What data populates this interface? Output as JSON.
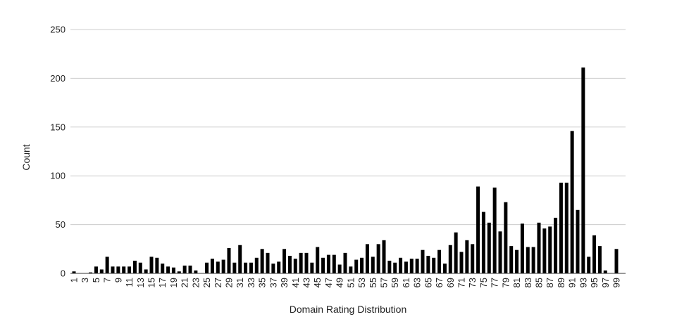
{
  "colors": {
    "bar": "#000000",
    "grid": "#cccccc",
    "axis": "#333333",
    "text": "#222222"
  },
  "chart_data": {
    "type": "bar",
    "title": "",
    "xlabel": "Domain Rating Distribution",
    "ylabel": "Count",
    "ylim": [
      0,
      250
    ],
    "yticks": [
      0,
      50,
      100,
      150,
      200,
      250
    ],
    "grid": true,
    "legend": "none",
    "categories": [
      1,
      2,
      3,
      4,
      5,
      6,
      7,
      8,
      9,
      10,
      11,
      12,
      13,
      14,
      15,
      16,
      17,
      18,
      19,
      20,
      21,
      22,
      23,
      24,
      25,
      26,
      27,
      28,
      29,
      30,
      31,
      32,
      33,
      34,
      35,
      36,
      37,
      38,
      39,
      40,
      41,
      42,
      43,
      44,
      45,
      46,
      47,
      48,
      49,
      50,
      51,
      52,
      53,
      54,
      55,
      56,
      57,
      58,
      59,
      60,
      61,
      62,
      63,
      64,
      65,
      66,
      67,
      68,
      69,
      70,
      71,
      72,
      73,
      74,
      75,
      76,
      77,
      78,
      79,
      80,
      81,
      82,
      83,
      84,
      85,
      86,
      87,
      88,
      89,
      90,
      91,
      92,
      93,
      94,
      95,
      96,
      97,
      98,
      99
    ],
    "tick_labels": [
      "1",
      "3",
      "5",
      "7",
      "9",
      "11",
      "13",
      "15",
      "17",
      "19",
      "21",
      "23",
      "25",
      "27",
      "29",
      "31",
      "33",
      "35",
      "37",
      "39",
      "41",
      "43",
      "45",
      "47",
      "49",
      "51",
      "53",
      "55",
      "57",
      "59",
      "61",
      "63",
      "65",
      "67",
      "69",
      "71",
      "73",
      "75",
      "77",
      "79",
      "81",
      "83",
      "85",
      "87",
      "89",
      "91",
      "93",
      "95",
      "97",
      "99"
    ],
    "values": [
      2,
      0,
      0,
      1,
      7,
      4,
      17,
      7,
      7,
      7,
      7,
      13,
      11,
      4,
      17,
      16,
      10,
      7,
      6,
      2,
      8,
      8,
      3,
      0,
      11,
      15,
      12,
      14,
      26,
      11,
      29,
      11,
      11,
      16,
      25,
      21,
      10,
      12,
      25,
      18,
      15,
      21,
      21,
      11,
      27,
      16,
      19,
      19,
      9,
      21,
      7,
      14,
      16,
      30,
      17,
      30,
      34,
      13,
      11,
      16,
      12,
      15,
      15,
      24,
      18,
      16,
      24,
      10,
      29,
      42,
      22,
      34,
      30,
      89,
      63,
      52,
      88,
      43,
      73,
      28,
      24,
      51,
      27,
      27,
      52,
      46,
      48,
      57,
      93,
      93,
      146,
      65,
      211,
      17,
      39,
      28,
      3,
      0,
      25
    ]
  }
}
